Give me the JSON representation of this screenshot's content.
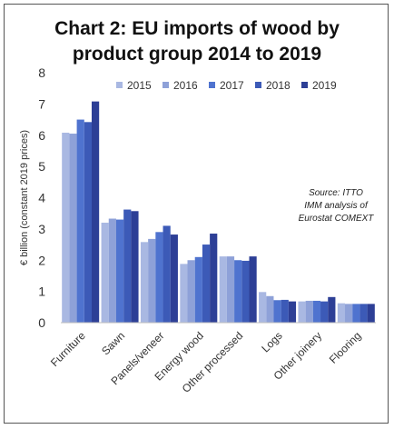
{
  "chart_data": {
    "type": "bar",
    "title_line1": "Chart 2: EU imports of wood by",
    "title_line2": "product group 2014 to 2019",
    "ylabel": "€ billion (constant 2019 prices)",
    "xlabel": "",
    "ylim": [
      0,
      8
    ],
    "yticks": [
      0,
      1,
      2,
      3,
      4,
      5,
      6,
      7,
      8
    ],
    "grid": false,
    "legend_position": "top",
    "categories": [
      "Furniture",
      "Sawn",
      "Panels/veneer",
      "Energy wood",
      "Other processed",
      "Logs",
      "Other joinery",
      "Flooring"
    ],
    "series": [
      {
        "name": "2015",
        "color": "#a9b8e2",
        "values": [
          6.08,
          3.2,
          2.58,
          1.88,
          2.12,
          0.98,
          0.68,
          0.62
        ]
      },
      {
        "name": "2016",
        "color": "#8ea1d8",
        "values": [
          6.05,
          3.33,
          2.68,
          2.0,
          2.12,
          0.85,
          0.7,
          0.6
        ]
      },
      {
        "name": "2017",
        "color": "#4f73cf",
        "values": [
          6.5,
          3.3,
          2.9,
          2.1,
          2.0,
          0.72,
          0.7,
          0.6
        ]
      },
      {
        "name": "2018",
        "color": "#3c5ab7",
        "values": [
          6.42,
          3.62,
          3.1,
          2.5,
          1.98,
          0.73,
          0.68,
          0.6
        ]
      },
      {
        "name": "2019",
        "color": "#2d3f96",
        "values": [
          7.08,
          3.57,
          2.82,
          2.85,
          2.12,
          0.68,
          0.82,
          0.6
        ]
      }
    ],
    "annotation": [
      "Source: ITTO",
      "IMM analysis of",
      "Eurostat COMEXT"
    ]
  }
}
